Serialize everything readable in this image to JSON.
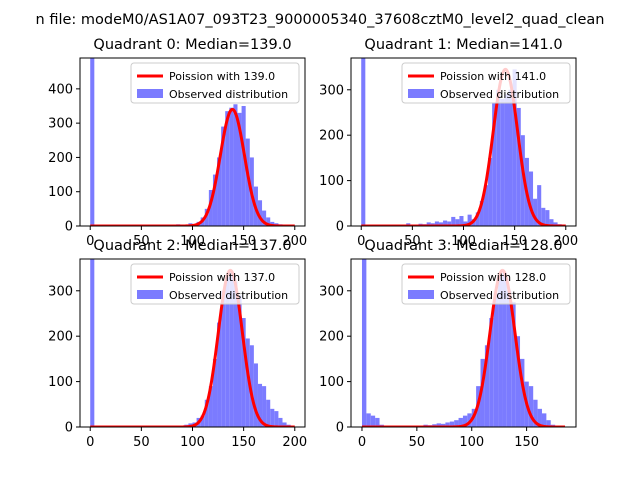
{
  "figure": {
    "suptitle": "n file: modeM0/AS1A07_093T23_9000005340_37608cztM0_level2_quad_clean"
  },
  "colors": {
    "hist": "#7b7bff",
    "fit": "#ff0000",
    "axes": "#000000",
    "background": "#ffffff"
  },
  "chart_data": [
    {
      "type": "histogram+line",
      "title": "Quadrant 0: Median=139.0",
      "legend": [
        "Poission with 139.0",
        "Observed distribution"
      ],
      "legend_position": "top-right",
      "xlim": [
        -10,
        210
      ],
      "ylim": [
        0,
        490
      ],
      "xticks": [
        0,
        50,
        100,
        150,
        200
      ],
      "yticks": [
        0,
        100,
        200,
        300,
        400
      ],
      "fit_mean": 139.0,
      "fit_peak": 340,
      "fit_x_range": [
        0,
        200
      ],
      "hist_bins": [
        {
          "x0": 0,
          "x1": 4,
          "count": 490
        },
        {
          "x0": 80,
          "x1": 84,
          "count": 2
        },
        {
          "x0": 84,
          "x1": 88,
          "count": 5
        },
        {
          "x0": 88,
          "x1": 92,
          "count": 3
        },
        {
          "x0": 92,
          "x1": 96,
          "count": 2
        },
        {
          "x0": 96,
          "x1": 100,
          "count": 8
        },
        {
          "x0": 100,
          "x1": 104,
          "count": 5
        },
        {
          "x0": 104,
          "x1": 108,
          "count": 12
        },
        {
          "x0": 108,
          "x1": 112,
          "count": 25
        },
        {
          "x0": 112,
          "x1": 116,
          "count": 50
        },
        {
          "x0": 116,
          "x1": 120,
          "count": 105
        },
        {
          "x0": 120,
          "x1": 124,
          "count": 150
        },
        {
          "x0": 124,
          "x1": 128,
          "count": 200
        },
        {
          "x0": 128,
          "x1": 132,
          "count": 290
        },
        {
          "x0": 132,
          "x1": 136,
          "count": 335
        },
        {
          "x0": 136,
          "x1": 140,
          "count": 345
        },
        {
          "x0": 140,
          "x1": 144,
          "count": 355
        },
        {
          "x0": 144,
          "x1": 148,
          "count": 330
        },
        {
          "x0": 148,
          "x1": 152,
          "count": 350
        },
        {
          "x0": 152,
          "x1": 156,
          "count": 255
        },
        {
          "x0": 156,
          "x1": 160,
          "count": 200
        },
        {
          "x0": 160,
          "x1": 164,
          "count": 115
        },
        {
          "x0": 164,
          "x1": 168,
          "count": 75
        },
        {
          "x0": 168,
          "x1": 172,
          "count": 45
        },
        {
          "x0": 172,
          "x1": 176,
          "count": 25
        },
        {
          "x0": 176,
          "x1": 180,
          "count": 12
        },
        {
          "x0": 180,
          "x1": 184,
          "count": 8
        },
        {
          "x0": 184,
          "x1": 188,
          "count": 5
        },
        {
          "x0": 188,
          "x1": 192,
          "count": 3
        }
      ]
    },
    {
      "type": "histogram+line",
      "title": "Quadrant 1: Median=141.0",
      "legend": [
        "Poission with 141.0",
        "Observed distribution"
      ],
      "legend_position": "top-right",
      "xlim": [
        -10,
        210
      ],
      "ylim": [
        0,
        370
      ],
      "xticks": [
        0,
        50,
        100,
        150,
        200
      ],
      "yticks": [
        0,
        100,
        200,
        300
      ],
      "fit_mean": 141.0,
      "fit_peak": 345,
      "fit_x_range": [
        0,
        200
      ],
      "hist_bins": [
        {
          "x0": 0,
          "x1": 4,
          "count": 370
        },
        {
          "x0": 36,
          "x1": 40,
          "count": 3
        },
        {
          "x0": 44,
          "x1": 48,
          "count": 6
        },
        {
          "x0": 48,
          "x1": 52,
          "count": 2
        },
        {
          "x0": 56,
          "x1": 60,
          "count": 5
        },
        {
          "x0": 60,
          "x1": 64,
          "count": 4
        },
        {
          "x0": 64,
          "x1": 68,
          "count": 8
        },
        {
          "x0": 68,
          "x1": 72,
          "count": 6
        },
        {
          "x0": 72,
          "x1": 76,
          "count": 10
        },
        {
          "x0": 76,
          "x1": 80,
          "count": 8
        },
        {
          "x0": 80,
          "x1": 84,
          "count": 12
        },
        {
          "x0": 84,
          "x1": 88,
          "count": 10
        },
        {
          "x0": 88,
          "x1": 92,
          "count": 20
        },
        {
          "x0": 92,
          "x1": 96,
          "count": 15
        },
        {
          "x0": 96,
          "x1": 100,
          "count": 22
        },
        {
          "x0": 100,
          "x1": 104,
          "count": 10
        },
        {
          "x0": 104,
          "x1": 108,
          "count": 25
        },
        {
          "x0": 108,
          "x1": 112,
          "count": 15
        },
        {
          "x0": 112,
          "x1": 116,
          "count": 30
        },
        {
          "x0": 116,
          "x1": 120,
          "count": 55
        },
        {
          "x0": 120,
          "x1": 124,
          "count": 90
        },
        {
          "x0": 124,
          "x1": 128,
          "count": 150
        },
        {
          "x0": 128,
          "x1": 132,
          "count": 270
        },
        {
          "x0": 132,
          "x1": 136,
          "count": 300
        },
        {
          "x0": 136,
          "x1": 140,
          "count": 280
        },
        {
          "x0": 140,
          "x1": 144,
          "count": 290
        },
        {
          "x0": 144,
          "x1": 148,
          "count": 300
        },
        {
          "x0": 148,
          "x1": 152,
          "count": 345
        },
        {
          "x0": 152,
          "x1": 156,
          "count": 260
        },
        {
          "x0": 156,
          "x1": 160,
          "count": 200
        },
        {
          "x0": 160,
          "x1": 164,
          "count": 150
        },
        {
          "x0": 164,
          "x1": 168,
          "count": 120
        },
        {
          "x0": 168,
          "x1": 172,
          "count": 60
        },
        {
          "x0": 172,
          "x1": 176,
          "count": 90
        },
        {
          "x0": 176,
          "x1": 180,
          "count": 40
        },
        {
          "x0": 180,
          "x1": 184,
          "count": 35
        },
        {
          "x0": 184,
          "x1": 188,
          "count": 15
        },
        {
          "x0": 188,
          "x1": 192,
          "count": 8
        },
        {
          "x0": 192,
          "x1": 196,
          "count": 4
        }
      ]
    },
    {
      "type": "histogram+line",
      "title": "Quadrant 2: Median=137.0",
      "legend": [
        "Poission with 137.0",
        "Observed distribution"
      ],
      "legend_position": "top-right",
      "xlim": [
        -10,
        210
      ],
      "ylim": [
        0,
        370
      ],
      "xticks": [
        0,
        50,
        100,
        150,
        200
      ],
      "yticks": [
        0,
        100,
        200,
        300
      ],
      "fit_mean": 137.0,
      "fit_peak": 345,
      "fit_x_range": [
        0,
        200
      ],
      "hist_bins": [
        {
          "x0": 0,
          "x1": 4,
          "count": 370
        },
        {
          "x0": 84,
          "x1": 88,
          "count": 2
        },
        {
          "x0": 88,
          "x1": 92,
          "count": 3
        },
        {
          "x0": 92,
          "x1": 96,
          "count": 5
        },
        {
          "x0": 96,
          "x1": 100,
          "count": 8
        },
        {
          "x0": 100,
          "x1": 104,
          "count": 10
        },
        {
          "x0": 104,
          "x1": 108,
          "count": 20
        },
        {
          "x0": 108,
          "x1": 112,
          "count": 25
        },
        {
          "x0": 112,
          "x1": 116,
          "count": 60
        },
        {
          "x0": 116,
          "x1": 120,
          "count": 90
        },
        {
          "x0": 120,
          "x1": 124,
          "count": 150
        },
        {
          "x0": 124,
          "x1": 128,
          "count": 230
        },
        {
          "x0": 128,
          "x1": 132,
          "count": 300
        },
        {
          "x0": 132,
          "x1": 136,
          "count": 330
        },
        {
          "x0": 136,
          "x1": 140,
          "count": 340
        },
        {
          "x0": 140,
          "x1": 144,
          "count": 320
        },
        {
          "x0": 144,
          "x1": 148,
          "count": 290
        },
        {
          "x0": 148,
          "x1": 152,
          "count": 240
        },
        {
          "x0": 152,
          "x1": 156,
          "count": 195
        },
        {
          "x0": 156,
          "x1": 160,
          "count": 180
        },
        {
          "x0": 160,
          "x1": 164,
          "count": 140
        },
        {
          "x0": 164,
          "x1": 168,
          "count": 95
        },
        {
          "x0": 168,
          "x1": 172,
          "count": 90
        },
        {
          "x0": 172,
          "x1": 176,
          "count": 60
        },
        {
          "x0": 176,
          "x1": 180,
          "count": 40
        },
        {
          "x0": 180,
          "x1": 184,
          "count": 35
        },
        {
          "x0": 184,
          "x1": 188,
          "count": 20
        },
        {
          "x0": 188,
          "x1": 192,
          "count": 10
        },
        {
          "x0": 192,
          "x1": 196,
          "count": 5
        }
      ]
    },
    {
      "type": "histogram+line",
      "title": "Quadrant 3: Median=128.0",
      "legend": [
        "Poission with 128.0",
        "Observed distribution"
      ],
      "legend_position": "top-right",
      "xlim": [
        -10,
        195
      ],
      "ylim": [
        0,
        370
      ],
      "xticks": [
        0,
        50,
        100,
        150
      ],
      "yticks": [
        0,
        100,
        200,
        300
      ],
      "fit_mean": 128.0,
      "fit_peak": 345,
      "fit_x_range": [
        0,
        185
      ],
      "hist_bins": [
        {
          "x0": 0,
          "x1": 4,
          "count": 370
        },
        {
          "x0": 4,
          "x1": 8,
          "count": 30
        },
        {
          "x0": 8,
          "x1": 12,
          "count": 25
        },
        {
          "x0": 12,
          "x1": 16,
          "count": 20
        },
        {
          "x0": 16,
          "x1": 20,
          "count": 5
        },
        {
          "x0": 28,
          "x1": 32,
          "count": 3
        },
        {
          "x0": 36,
          "x1": 40,
          "count": 2
        },
        {
          "x0": 48,
          "x1": 52,
          "count": 3
        },
        {
          "x0": 56,
          "x1": 60,
          "count": 5
        },
        {
          "x0": 60,
          "x1": 64,
          "count": 4
        },
        {
          "x0": 64,
          "x1": 68,
          "count": 6
        },
        {
          "x0": 68,
          "x1": 72,
          "count": 8
        },
        {
          "x0": 72,
          "x1": 76,
          "count": 7
        },
        {
          "x0": 76,
          "x1": 80,
          "count": 10
        },
        {
          "x0": 80,
          "x1": 84,
          "count": 12
        },
        {
          "x0": 84,
          "x1": 88,
          "count": 15
        },
        {
          "x0": 88,
          "x1": 92,
          "count": 20
        },
        {
          "x0": 92,
          "x1": 96,
          "count": 25
        },
        {
          "x0": 96,
          "x1": 100,
          "count": 30
        },
        {
          "x0": 100,
          "x1": 104,
          "count": 40
        },
        {
          "x0": 104,
          "x1": 108,
          "count": 90
        },
        {
          "x0": 108,
          "x1": 112,
          "count": 150
        },
        {
          "x0": 112,
          "x1": 116,
          "count": 180
        },
        {
          "x0": 116,
          "x1": 120,
          "count": 240
        },
        {
          "x0": 120,
          "x1": 124,
          "count": 295
        },
        {
          "x0": 124,
          "x1": 128,
          "count": 330
        },
        {
          "x0": 128,
          "x1": 132,
          "count": 340
        },
        {
          "x0": 132,
          "x1": 136,
          "count": 300
        },
        {
          "x0": 136,
          "x1": 140,
          "count": 275
        },
        {
          "x0": 140,
          "x1": 144,
          "count": 200
        },
        {
          "x0": 144,
          "x1": 148,
          "count": 150
        },
        {
          "x0": 148,
          "x1": 152,
          "count": 100
        },
        {
          "x0": 152,
          "x1": 156,
          "count": 90
        },
        {
          "x0": 156,
          "x1": 160,
          "count": 60
        },
        {
          "x0": 160,
          "x1": 164,
          "count": 40
        },
        {
          "x0": 164,
          "x1": 168,
          "count": 30
        },
        {
          "x0": 168,
          "x1": 172,
          "count": 15
        },
        {
          "x0": 172,
          "x1": 176,
          "count": 5
        }
      ]
    }
  ]
}
